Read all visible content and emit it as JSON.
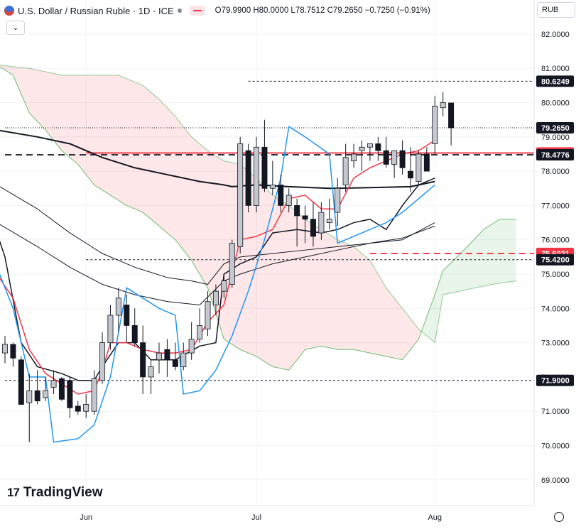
{
  "header": {
    "symbol": "U.S. Dollar / Russian Ruble · 1D · ICE",
    "ohlc": "O79.9900 H80.0000 L78.7512 C79.2650 −0.7250 (−0.91%)"
  },
  "currency_button": "RUB",
  "collapse_button": "⌄",
  "logo_text": "TradingView",
  "logo_mark": "17",
  "chart_data": {
    "type": "candlestick",
    "y_range": [
      68.7,
      82.5
    ],
    "y_ticks": [
      "82.0000",
      "81.0000",
      "80.0000",
      "79.0000",
      "78.0000",
      "77.0000",
      "76.0000",
      "75.0000",
      "74.0000",
      "73.0000",
      "72.0000",
      "71.0000",
      "70.0000",
      "69.0000"
    ],
    "x_ticks": [
      {
        "label": "Jun",
        "index": 10
      },
      {
        "label": "Jul",
        "index": 31
      },
      {
        "label": "Aug",
        "index": 53
      }
    ],
    "candles": [
      [
        72.7,
        73.2,
        72.4,
        72.95
      ],
      [
        72.95,
        73.0,
        72.3,
        72.55
      ],
      [
        72.5,
        72.6,
        71.3,
        71.2
      ],
      [
        71.25,
        72.1,
        70.1,
        71.6
      ],
      [
        71.6,
        72.2,
        71.2,
        71.3
      ],
      [
        71.4,
        72.0,
        71.3,
        71.6
      ],
      [
        71.7,
        72.2,
        71.5,
        71.9
      ],
      [
        71.95,
        72.0,
        71.3,
        71.35
      ],
      [
        71.9,
        72.0,
        70.8,
        71.1
      ],
      [
        71.15,
        71.3,
        70.9,
        71.0
      ],
      [
        71.0,
        71.5,
        70.8,
        71.2
      ],
      [
        71.0,
        72.2,
        70.9,
        71.95
      ],
      [
        71.9,
        73.3,
        71.8,
        73.0
      ],
      [
        73.0,
        74.1,
        72.8,
        73.8
      ],
      [
        73.8,
        74.6,
        73.3,
        74.3
      ],
      [
        74.1,
        74.4,
        73.0,
        73.5
      ],
      [
        73.5,
        74.0,
        72.9,
        73.0
      ],
      [
        73.0,
        73.5,
        71.5,
        72.0
      ],
      [
        72.0,
        72.5,
        71.5,
        72.3
      ],
      [
        72.5,
        73.0,
        72.1,
        72.7
      ],
      [
        72.8,
        73.1,
        72.0,
        72.5
      ],
      [
        72.5,
        73.0,
        72.2,
        72.3
      ],
      [
        72.3,
        73.0,
        72.2,
        72.7
      ],
      [
        72.7,
        73.6,
        72.5,
        73.1
      ],
      [
        73.1,
        74.0,
        73.0,
        73.5
      ],
      [
        73.4,
        74.5,
        73.2,
        74.2
      ],
      [
        74.1,
        74.7,
        73.8,
        74.5
      ],
      [
        74.5,
        75.0,
        74.3,
        74.8
      ],
      [
        74.7,
        76.0,
        74.6,
        75.9
      ],
      [
        75.8,
        79.0,
        75.6,
        78.8
      ],
      [
        78.6,
        78.8,
        76.8,
        77.0
      ],
      [
        77.0,
        79.0,
        76.8,
        78.7
      ],
      [
        78.7,
        79.5,
        77.4,
        77.5
      ],
      [
        77.5,
        78.3,
        77.3,
        77.6
      ],
      [
        77.6,
        77.9,
        76.8,
        77.0
      ],
      [
        77.0,
        77.5,
        76.8,
        77.3
      ],
      [
        77.0,
        77.2,
        75.8,
        76.7
      ],
      [
        76.7,
        77.0,
        75.9,
        76.6
      ],
      [
        76.6,
        77.1,
        75.8,
        76.1
      ],
      [
        76.2,
        77.1,
        76.0,
        76.8
      ],
      [
        76.5,
        77.2,
        76.3,
        76.6
      ],
      [
        76.8,
        77.8,
        76.4,
        77.5
      ],
      [
        77.6,
        78.8,
        77.4,
        78.4
      ],
      [
        78.3,
        78.8,
        78.1,
        78.5
      ],
      [
        78.6,
        78.9,
        78.0,
        78.7
      ],
      [
        78.7,
        78.8,
        78.3,
        78.8
      ],
      [
        78.8,
        79.0,
        78.3,
        78.6
      ],
      [
        78.6,
        79.0,
        78.1,
        78.2
      ],
      [
        78.2,
        78.6,
        77.8,
        78.6
      ],
      [
        78.6,
        78.9,
        77.9,
        78.1
      ],
      [
        78.0,
        78.7,
        77.4,
        77.8
      ],
      [
        77.7,
        78.6,
        77.6,
        78.5
      ],
      [
        78.5,
        78.7,
        78.0,
        78.0
      ],
      [
        78.8,
        80.2,
        78.5,
        79.9
      ],
      [
        79.85,
        80.3,
        79.6,
        80.0
      ],
      [
        79.99,
        80.0,
        78.75,
        79.265
      ]
    ],
    "price_labels": [
      {
        "value": "80.6249",
        "y": 80.6249,
        "color": "#131722"
      },
      {
        "value": "79.2650",
        "y": 79.265,
        "color": "#131722"
      },
      {
        "value": "78.5318",
        "y": 78.5318,
        "color": "#f23645"
      },
      {
        "value": "78.4776",
        "y": 78.4776,
        "color": "#131722"
      },
      {
        "value": "75.6021",
        "y": 75.6021,
        "color": "#f23645"
      },
      {
        "value": "75.4200",
        "y": 75.42,
        "color": "#131722"
      },
      {
        "value": "71.9000",
        "y": 71.9,
        "color": "#131722"
      }
    ],
    "horizontal_lines": [
      {
        "y": 80.6249,
        "start": 30,
        "style": "dotted",
        "color": "#131722"
      },
      {
        "y": 79.265,
        "start": 0,
        "style": "dotted-fine",
        "color": "#131722"
      },
      {
        "y": 78.5318,
        "start": 10,
        "style": "solid",
        "color": "#f23645"
      },
      {
        "y": 78.4776,
        "start": 0,
        "style": "dashed",
        "color": "#131722"
      },
      {
        "y": 75.6021,
        "start": 45,
        "style": "dashed",
        "color": "#f23645"
      },
      {
        "y": 75.42,
        "start": 10,
        "style": "dotted",
        "color": "#131722"
      },
      {
        "y": 71.9,
        "start": 0,
        "style": "dotted",
        "color": "#131722"
      }
    ],
    "series": [
      {
        "color": "#131722",
        "width": 2,
        "points": [
          [
            -1,
            79.2
          ],
          [
            4,
            79.0
          ],
          [
            8,
            78.8
          ],
          [
            12,
            78.4
          ],
          [
            16,
            78.1
          ],
          [
            20,
            77.9
          ],
          [
            24,
            77.7
          ],
          [
            27,
            77.6
          ],
          [
            28,
            77.55
          ],
          [
            31,
            77.6
          ],
          [
            35,
            77.55
          ],
          [
            40,
            77.5
          ],
          [
            45,
            77.52
          ],
          [
            50,
            77.55
          ],
          [
            53,
            77.7
          ]
        ]
      },
      {
        "color": "#131722",
        "width": 1,
        "points": [
          [
            -1,
            77.6
          ],
          [
            4,
            76.9
          ],
          [
            8,
            76.2
          ],
          [
            12,
            75.6
          ],
          [
            16,
            75.2
          ],
          [
            20,
            74.9
          ],
          [
            23,
            74.8
          ],
          [
            25,
            74.7
          ],
          [
            27,
            75.3
          ],
          [
            29,
            75.5
          ],
          [
            33,
            75.6
          ],
          [
            37,
            75.7
          ],
          [
            41,
            75.8
          ],
          [
            45,
            75.9
          ],
          [
            49,
            76.0
          ],
          [
            53,
            76.5
          ]
        ]
      },
      {
        "color": "#131722",
        "width": 1,
        "points": [
          [
            -1,
            76.5
          ],
          [
            4,
            75.8
          ],
          [
            8,
            75.2
          ],
          [
            12,
            74.7
          ],
          [
            16,
            74.4
          ],
          [
            20,
            74.2
          ],
          [
            24,
            74.1
          ],
          [
            27,
            74.8
          ],
          [
            29,
            75.0
          ],
          [
            33,
            75.3
          ],
          [
            37,
            75.5
          ],
          [
            41,
            75.7
          ],
          [
            45,
            75.9
          ],
          [
            49,
            76.05
          ],
          [
            53,
            76.4
          ]
        ]
      },
      {
        "color": "#131722",
        "width": 1.5,
        "points": [
          [
            -1,
            76.2
          ],
          [
            0,
            75.5
          ],
          [
            2,
            73.0
          ],
          [
            4,
            72.3
          ],
          [
            7,
            72.1
          ],
          [
            9,
            71.9
          ],
          [
            11,
            71.9
          ],
          [
            12,
            72.3
          ],
          [
            14,
            73.0
          ],
          [
            16,
            73.0
          ],
          [
            18,
            72.5
          ],
          [
            21,
            72.5
          ],
          [
            24,
            72.9
          ],
          [
            26,
            73.0
          ],
          [
            27,
            75.0
          ],
          [
            29,
            75.3
          ],
          [
            31,
            75.5
          ],
          [
            33,
            76.2
          ],
          [
            36,
            76.3
          ],
          [
            39,
            76.2
          ],
          [
            41,
            76.3
          ],
          [
            43,
            76.5
          ],
          [
            45,
            76.6
          ],
          [
            47,
            76.3
          ],
          [
            49,
            77.0
          ],
          [
            51,
            77.6
          ],
          [
            53,
            77.8
          ]
        ]
      },
      {
        "color": "#f23645",
        "width": 1.5,
        "points": [
          [
            -1,
            75.0
          ],
          [
            1,
            74.3
          ],
          [
            3,
            72.8
          ],
          [
            5,
            72.1
          ],
          [
            7,
            71.8
          ],
          [
            9,
            71.5
          ],
          [
            11,
            71.6
          ],
          [
            12,
            72.2
          ],
          [
            13,
            73.0
          ],
          [
            15,
            73.0
          ],
          [
            17,
            72.8
          ],
          [
            19,
            72.7
          ],
          [
            21,
            72.7
          ],
          [
            23,
            72.8
          ],
          [
            25,
            73.6
          ],
          [
            27,
            74.1
          ],
          [
            29,
            76.0
          ],
          [
            31,
            76.1
          ],
          [
            33,
            76.3
          ],
          [
            35,
            77.2
          ],
          [
            37,
            77.3
          ],
          [
            39,
            76.9
          ],
          [
            41,
            76.9
          ],
          [
            43,
            77.8
          ],
          [
            45,
            78.1
          ],
          [
            47,
            78.3
          ],
          [
            49,
            78.5
          ],
          [
            51,
            78.6
          ],
          [
            53,
            78.9
          ]
        ]
      },
      {
        "color": "#2196f3",
        "width": 1.5,
        "points": [
          [
            -1,
            75.2
          ],
          [
            1,
            74.0
          ],
          [
            3,
            72.0
          ],
          [
            5,
            72.0
          ],
          [
            6,
            70.1
          ],
          [
            9,
            70.2
          ],
          [
            11,
            70.6
          ],
          [
            13,
            72.0
          ],
          [
            15,
            74.6
          ],
          [
            17,
            74.3
          ],
          [
            19,
            74.0
          ],
          [
            21,
            73.8
          ],
          [
            22,
            71.5
          ],
          [
            24,
            71.6
          ],
          [
            26,
            72.2
          ],
          [
            28,
            73.2
          ],
          [
            30,
            74.5
          ],
          [
            32,
            76.0
          ],
          [
            34,
            77.8
          ],
          [
            35,
            79.3
          ],
          [
            37,
            79.0
          ],
          [
            40,
            78.5
          ],
          [
            41,
            75.9
          ],
          [
            43,
            76.1
          ],
          [
            45,
            76.3
          ],
          [
            47,
            76.5
          ],
          [
            49,
            76.8
          ],
          [
            51,
            77.2
          ],
          [
            53,
            77.6
          ]
        ]
      }
    ],
    "cloud": {
      "senkou_a_color": "#4caf50",
      "senkou_b_color": "#4caf50",
      "span_a": [
        [
          -1,
          81.1
        ],
        [
          1,
          80.8
        ],
        [
          3,
          79.7
        ],
        [
          5,
          79.2
        ],
        [
          7,
          78.6
        ],
        [
          9,
          78.2
        ],
        [
          11,
          77.6
        ],
        [
          13,
          77.3
        ],
        [
          15,
          77.0
        ],
        [
          17,
          76.8
        ],
        [
          19,
          76.4
        ],
        [
          21,
          76.0
        ],
        [
          23,
          75.4
        ],
        [
          25,
          74.6
        ],
        [
          27,
          73.1
        ],
        [
          29,
          72.8
        ],
        [
          31,
          72.6
        ],
        [
          33,
          72.3
        ],
        [
          35,
          72.2
        ],
        [
          37,
          72.8
        ],
        [
          39,
          72.9
        ],
        [
          41,
          72.8
        ],
        [
          43,
          72.8
        ],
        [
          45,
          72.7
        ],
        [
          47,
          72.6
        ],
        [
          49,
          72.5
        ],
        [
          51,
          73.1
        ],
        [
          53,
          74.4
        ],
        [
          54,
          75.1
        ],
        [
          57,
          75.8
        ],
        [
          59,
          76.3
        ],
        [
          61,
          76.6
        ],
        [
          63,
          76.6
        ]
      ],
      "span_b": [
        [
          -1,
          81.1
        ],
        [
          3,
          81.0
        ],
        [
          7,
          80.8
        ],
        [
          11,
          80.8
        ],
        [
          14,
          80.8
        ],
        [
          17,
          80.5
        ],
        [
          19,
          80.1
        ],
        [
          21,
          79.6
        ],
        [
          23,
          79.0
        ],
        [
          25,
          78.6
        ],
        [
          27,
          78.3
        ],
        [
          29,
          78.2
        ],
        [
          31,
          77.8
        ],
        [
          33,
          77.3
        ],
        [
          35,
          77.0
        ],
        [
          37,
          76.6
        ],
        [
          39,
          76.3
        ],
        [
          41,
          76.0
        ],
        [
          43,
          75.8
        ],
        [
          45,
          75.4
        ],
        [
          47,
          74.6
        ],
        [
          49,
          74.0
        ],
        [
          51,
          73.4
        ],
        [
          53,
          73.0
        ],
        [
          54,
          74.4
        ],
        [
          56,
          74.5
        ],
        [
          58,
          74.6
        ],
        [
          60,
          74.7
        ],
        [
          63,
          74.8
        ]
      ]
    }
  }
}
